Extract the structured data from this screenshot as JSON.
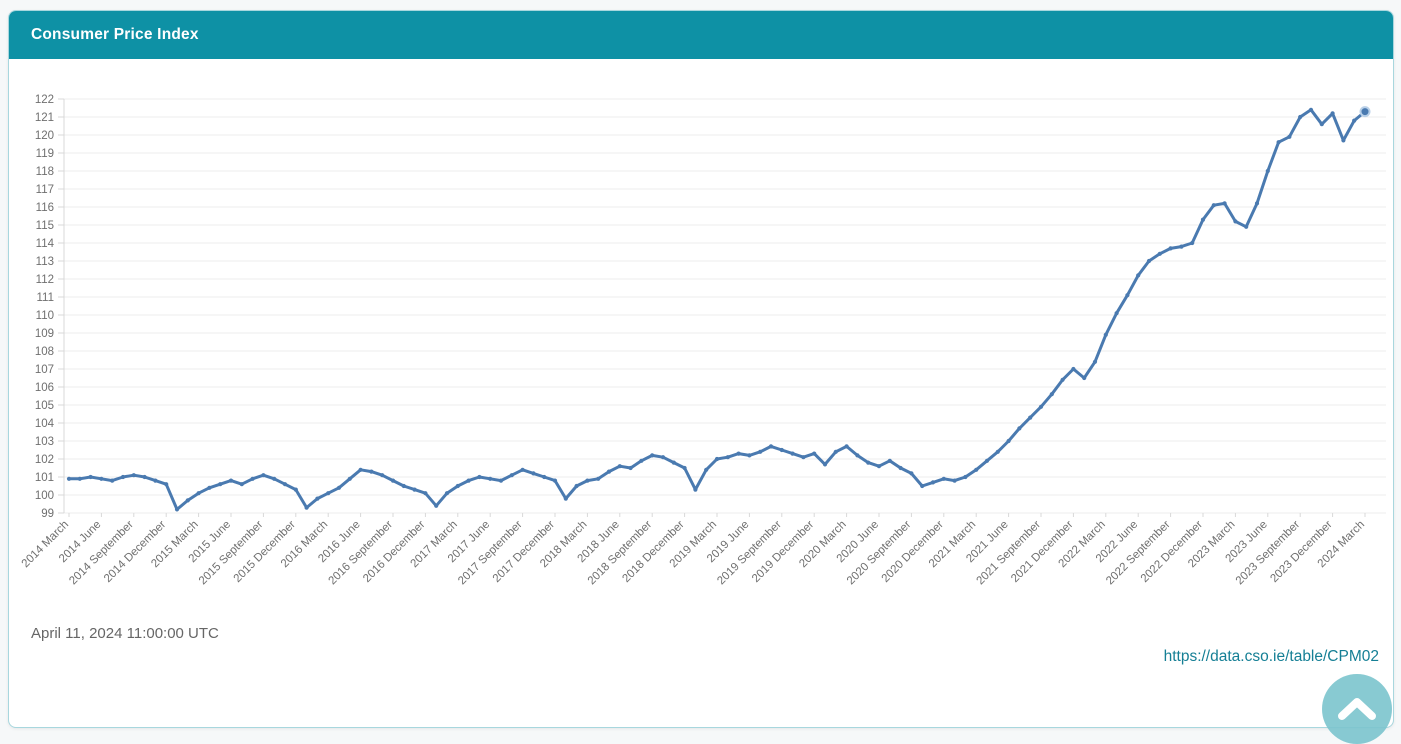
{
  "panel": {
    "title": "Consumer Price Index"
  },
  "footer": {
    "timestamp": "April 11, 2024 11:00:00 UTC",
    "source_url": "https://data.cso.ie/table/CPM02"
  },
  "colors": {
    "page_bg": "#f6f8f9",
    "card_border": "#a8d7de",
    "header_teal": "#0e91a5",
    "title_white": "#ffffff",
    "line_blue": "#4a7ab0",
    "marker_halo": "#b9d0e8",
    "grid_gray": "#ececec",
    "axis_gray": "#d9d9d9",
    "tick_text": "#6f6f6f",
    "timestamp_text": "#666666",
    "link_teal": "#157f95",
    "scroll_button": "#7cc5ce"
  },
  "chart_data": {
    "type": "line",
    "title": "Consumer Price Index",
    "xlabel": "",
    "ylabel": "",
    "ylim": [
      99,
      122
    ],
    "y_tick_step": 1,
    "grid": true,
    "legend": "none",
    "marker_on_last_point": true,
    "x_tick_every_n_months": 3,
    "x": [
      "2014 March",
      "2014 April",
      "2014 May",
      "2014 June",
      "2014 July",
      "2014 August",
      "2014 September",
      "2014 October",
      "2014 November",
      "2014 December",
      "2015 January",
      "2015 February",
      "2015 March",
      "2015 April",
      "2015 May",
      "2015 June",
      "2015 July",
      "2015 August",
      "2015 September",
      "2015 October",
      "2015 November",
      "2015 December",
      "2016 January",
      "2016 February",
      "2016 March",
      "2016 April",
      "2016 May",
      "2016 June",
      "2016 July",
      "2016 August",
      "2016 September",
      "2016 October",
      "2016 November",
      "2016 December",
      "2017 January",
      "2017 February",
      "2017 March",
      "2017 April",
      "2017 May",
      "2017 June",
      "2017 July",
      "2017 August",
      "2017 September",
      "2017 October",
      "2017 November",
      "2017 December",
      "2018 January",
      "2018 February",
      "2018 March",
      "2018 April",
      "2018 May",
      "2018 June",
      "2018 July",
      "2018 August",
      "2018 September",
      "2018 October",
      "2018 November",
      "2018 December",
      "2019 January",
      "2019 February",
      "2019 March",
      "2019 April",
      "2019 May",
      "2019 June",
      "2019 July",
      "2019 August",
      "2019 September",
      "2019 October",
      "2019 November",
      "2019 December",
      "2020 January",
      "2020 February",
      "2020 March",
      "2020 April",
      "2020 May",
      "2020 June",
      "2020 July",
      "2020 August",
      "2020 September",
      "2020 October",
      "2020 November",
      "2020 December",
      "2021 January",
      "2021 February",
      "2021 March",
      "2021 April",
      "2021 May",
      "2021 June",
      "2021 July",
      "2021 August",
      "2021 September",
      "2021 October",
      "2021 November",
      "2021 December",
      "2022 January",
      "2022 February",
      "2022 March",
      "2022 April",
      "2022 May",
      "2022 June",
      "2022 July",
      "2022 August",
      "2022 September",
      "2022 October",
      "2022 November",
      "2022 December",
      "2023 January",
      "2023 February",
      "2023 March",
      "2023 April",
      "2023 May",
      "2023 June",
      "2023 July",
      "2023 August",
      "2023 September",
      "2023 October",
      "2023 November",
      "2023 December",
      "2024 January",
      "2024 February",
      "2024 March"
    ],
    "values": [
      100.9,
      100.9,
      101.0,
      100.9,
      100.8,
      101.0,
      101.1,
      101.0,
      100.8,
      100.6,
      99.2,
      99.7,
      100.1,
      100.4,
      100.6,
      100.8,
      100.6,
      100.9,
      101.1,
      100.9,
      100.6,
      100.3,
      99.3,
      99.8,
      100.1,
      100.4,
      100.9,
      101.4,
      101.3,
      101.1,
      100.8,
      100.5,
      100.3,
      100.1,
      99.4,
      100.1,
      100.5,
      100.8,
      101.0,
      100.9,
      100.8,
      101.1,
      101.4,
      101.2,
      101.0,
      100.8,
      99.8,
      100.5,
      100.8,
      100.9,
      101.3,
      101.6,
      101.5,
      101.9,
      102.2,
      102.1,
      101.8,
      101.5,
      100.3,
      101.4,
      102.0,
      102.1,
      102.3,
      102.2,
      102.4,
      102.7,
      102.5,
      102.3,
      102.1,
      102.3,
      101.7,
      102.4,
      102.7,
      102.2,
      101.8,
      101.6,
      101.9,
      101.5,
      101.2,
      100.5,
      100.7,
      100.9,
      100.8,
      101.0,
      101.4,
      101.9,
      102.4,
      103.0,
      103.7,
      104.3,
      104.9,
      105.6,
      106.4,
      107.0,
      106.5,
      107.4,
      108.9,
      110.1,
      111.1,
      112.2,
      113.0,
      113.4,
      113.7,
      113.8,
      114.0,
      115.3,
      116.1,
      116.2,
      115.2,
      114.9,
      116.2,
      118.0,
      119.6,
      119.9,
      121.0,
      121.4,
      120.6,
      121.2,
      119.7,
      120.8,
      121.3
    ],
    "x_tick_labels": [
      "2014 March",
      "2014 June",
      "2014 September",
      "2014 December",
      "2015 March",
      "2015 June",
      "2015 September",
      "2015 December",
      "2016 March",
      "2016 June",
      "2016 September",
      "2016 December",
      "2017 March",
      "2017 June",
      "2017 September",
      "2017 December",
      "2018 March",
      "2018 June",
      "2018 September",
      "2018 December",
      "2019 March",
      "2019 June",
      "2019 September",
      "2019 December",
      "2020 March",
      "2020 June",
      "2020 September",
      "2020 December",
      "2021 March",
      "2021 June",
      "2021 September",
      "2021 December",
      "2022 March",
      "2022 June",
      "2022 September",
      "2022 December",
      "2023 March",
      "2023 June",
      "2023 September",
      "2023 December",
      "2024 March"
    ]
  }
}
